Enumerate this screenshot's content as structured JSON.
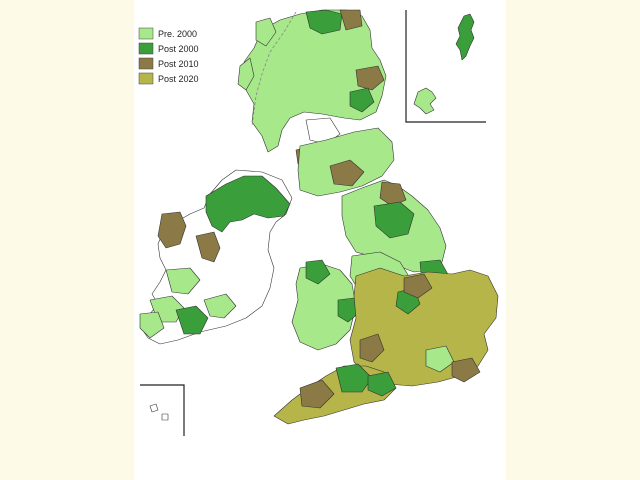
{
  "legend": {
    "items": [
      {
        "label": "Pre.  2000",
        "color": "#a7e88a"
      },
      {
        "label": "Post 2000",
        "color": "#3a9e3a"
      },
      {
        "label": "Post 2010",
        "color": "#8b7a45"
      },
      {
        "label": "Post 2020",
        "color": "#b5b54a"
      }
    ]
  },
  "colors": {
    "unfilled": "#ffffff",
    "outline": "#333333",
    "background": "#fdfbe8"
  }
}
